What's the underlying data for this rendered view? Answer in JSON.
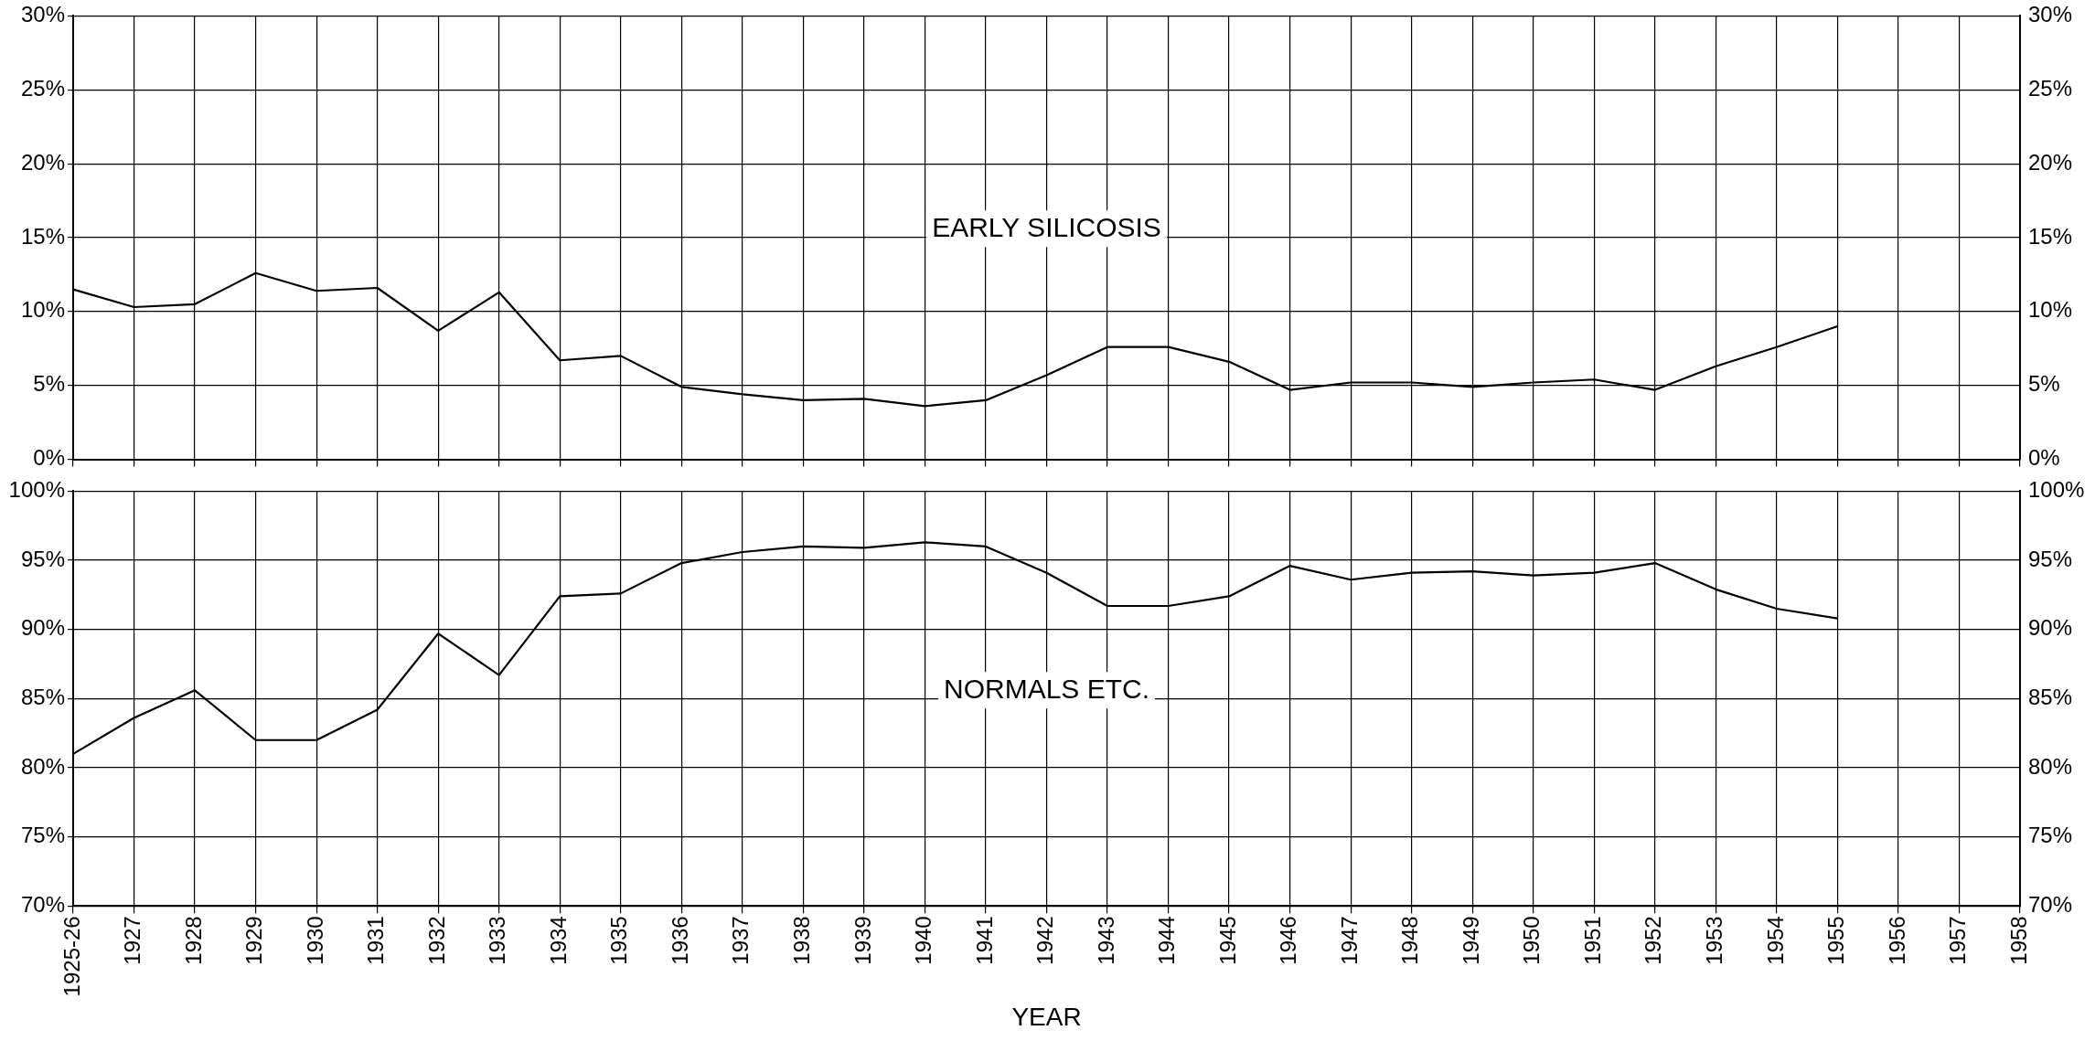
{
  "chart_data": [
    {
      "type": "line",
      "categories": [
        "1925-26",
        "1927",
        "1928",
        "1929",
        "1930",
        "1931",
        "1932",
        "1933",
        "1934",
        "1935",
        "1936",
        "1937",
        "1938",
        "1939",
        "1940",
        "1941",
        "1942",
        "1943",
        "1944",
        "1945",
        "1946",
        "1947",
        "1948",
        "1949",
        "1950",
        "1951",
        "1952",
        "1953",
        "1954",
        "1955",
        "1956",
        "1957",
        "1958"
      ],
      "series": [
        {
          "name": "EARLY SILICOSIS",
          "color": "#000000",
          "values": [
            11.5,
            10.3,
            10.5,
            12.6,
            11.4,
            11.6,
            8.7,
            11.3,
            6.7,
            7.0,
            4.9,
            4.4,
            4.0,
            4.1,
            3.6,
            4.0,
            5.7,
            7.6,
            7.6,
            6.6,
            4.7,
            5.2,
            5.2,
            4.9,
            5.2,
            5.4,
            4.7,
            6.3,
            7.6,
            9.0,
            null,
            null,
            null
          ]
        }
      ],
      "ylim": [
        0,
        30
      ],
      "yticks": [
        {
          "value": 0,
          "label": "0%"
        },
        {
          "value": 5,
          "label": "5%"
        },
        {
          "value": 10,
          "label": "10%"
        },
        {
          "value": 15,
          "label": "15%"
        },
        {
          "value": 20,
          "label": "20%"
        },
        {
          "value": 25,
          "label": "25%"
        },
        {
          "value": 30,
          "label": "30%"
        }
      ],
      "y2lim": [
        0,
        30
      ],
      "y2ticks": [
        {
          "value": 0,
          "label": "0%"
        },
        {
          "value": 5,
          "label": "5%"
        },
        {
          "value": 10,
          "label": "10%"
        },
        {
          "value": 15,
          "label": "15%"
        },
        {
          "value": 20,
          "label": "20%"
        },
        {
          "value": 25,
          "label": "25%"
        },
        {
          "value": 30,
          "label": "30%"
        }
      ],
      "grid": true,
      "legend": false,
      "tick_labels": "y"
    },
    {
      "type": "line",
      "categories": [
        "1925-26",
        "1927",
        "1928",
        "1929",
        "1930",
        "1931",
        "1932",
        "1933",
        "1934",
        "1935",
        "1936",
        "1937",
        "1938",
        "1939",
        "1940",
        "1941",
        "1942",
        "1943",
        "1944",
        "1945",
        "1946",
        "1947",
        "1948",
        "1949",
        "1950",
        "1951",
        "1952",
        "1953",
        "1954",
        "1955",
        "1956",
        "1957",
        "1958"
      ],
      "series": [
        {
          "name": "NORMALS ETC.",
          "color": "#000000",
          "values": [
            81.0,
            83.6,
            85.6,
            82.0,
            82.0,
            84.2,
            89.7,
            86.7,
            92.4,
            92.6,
            94.8,
            95.6,
            96.0,
            95.9,
            96.3,
            96.0,
            94.1,
            91.7,
            91.7,
            92.4,
            94.6,
            93.6,
            94.1,
            94.2,
            93.9,
            94.1,
            94.8,
            92.9,
            91.5,
            90.8,
            null,
            null,
            null
          ]
        }
      ],
      "xlabel": "YEAR",
      "ylim": [
        70,
        100
      ],
      "yticks": [
        {
          "value": 70,
          "label": "70%"
        },
        {
          "value": 75,
          "label": "75%"
        },
        {
          "value": 80,
          "label": "80%"
        },
        {
          "value": 85,
          "label": "85%"
        },
        {
          "value": 90,
          "label": "90%"
        },
        {
          "value": 95,
          "label": "95%"
        },
        {
          "value": 100,
          "label": "100%"
        }
      ],
      "y2lim": [
        70,
        100
      ],
      "y2ticks": [
        {
          "value": 70,
          "label": "70%"
        },
        {
          "value": 75,
          "label": "75%"
        },
        {
          "value": 80,
          "label": "80%"
        },
        {
          "value": 85,
          "label": "85%"
        },
        {
          "value": 90,
          "label": "90%"
        },
        {
          "value": 95,
          "label": "95%"
        },
        {
          "value": 100,
          "label": "100%"
        }
      ],
      "grid": true,
      "legend": false
    }
  ]
}
